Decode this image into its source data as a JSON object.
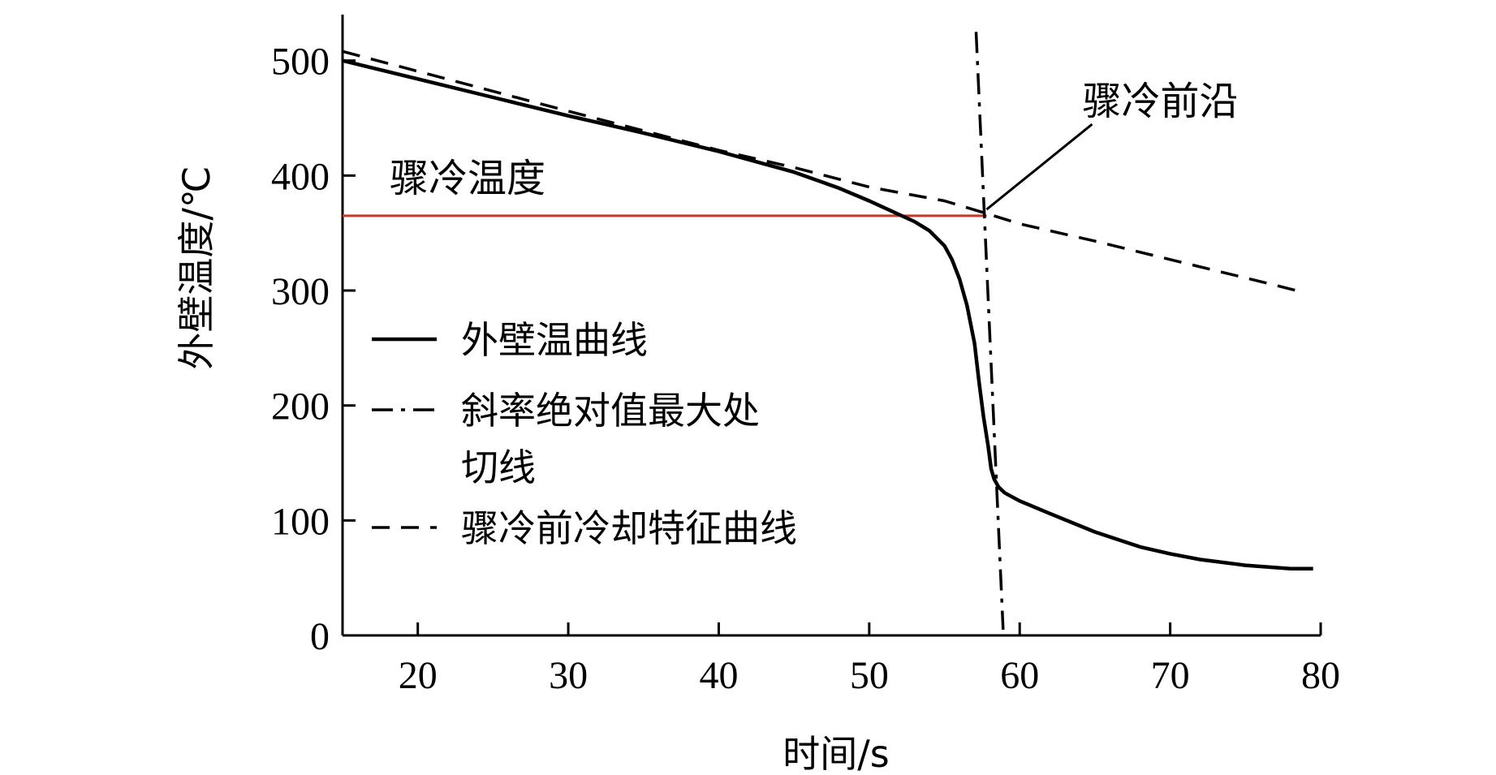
{
  "chart_data": {
    "type": "line",
    "xlabel": "时间/s",
    "ylabel": "外壁温度/℃",
    "xlim": [
      15,
      80
    ],
    "ylim": [
      0,
      540
    ],
    "x_ticks": [
      20,
      30,
      40,
      50,
      60,
      70,
      80
    ],
    "y_ticks": [
      0,
      100,
      200,
      300,
      400,
      500
    ],
    "grid": false,
    "legend_position": "center-left",
    "series": [
      {
        "name": "外壁温曲线",
        "style": "solid",
        "color": "#000000",
        "x": [
          15,
          20,
          25,
          30,
          35,
          40,
          45,
          48,
          50,
          52,
          53,
          54,
          55,
          55.5,
          56,
          56.5,
          57,
          57.3,
          57.6,
          57.9,
          58.1,
          58.3,
          58.6,
          59,
          60,
          62,
          65,
          68,
          70,
          72,
          75,
          78,
          79.5
        ],
        "y": [
          500,
          484,
          468,
          452,
          437,
          421,
          403,
          389,
          378,
          366,
          360,
          352,
          339,
          327,
          310,
          287,
          254,
          220,
          190,
          165,
          145,
          136,
          129,
          124,
          117,
          106,
          90,
          77,
          71,
          66,
          61,
          58,
          58
        ]
      },
      {
        "name": "斜率绝对值最大处切线",
        "style": "dashdot",
        "color": "#000000",
        "x": [
          57.1,
          58.9
        ],
        "y": [
          525,
          5
        ]
      },
      {
        "name": "骤冷前冷却特征曲线",
        "style": "dashed",
        "color": "#000000",
        "x": [
          15,
          30,
          40,
          45,
          50,
          55,
          57.8,
          60,
          65,
          70,
          75,
          79
        ],
        "y": [
          508,
          456,
          422,
          407,
          390,
          378,
          367,
          358,
          343,
          327,
          311,
          298
        ]
      }
    ],
    "reference_lines": [
      {
        "label": "骤冷温度",
        "y": 365,
        "x_start": 15,
        "x_end": 57.8,
        "color": "#c0392b"
      }
    ],
    "annotations": [
      {
        "text": "骤冷前沿",
        "point_x": 57.8,
        "point_y": 367
      }
    ]
  }
}
